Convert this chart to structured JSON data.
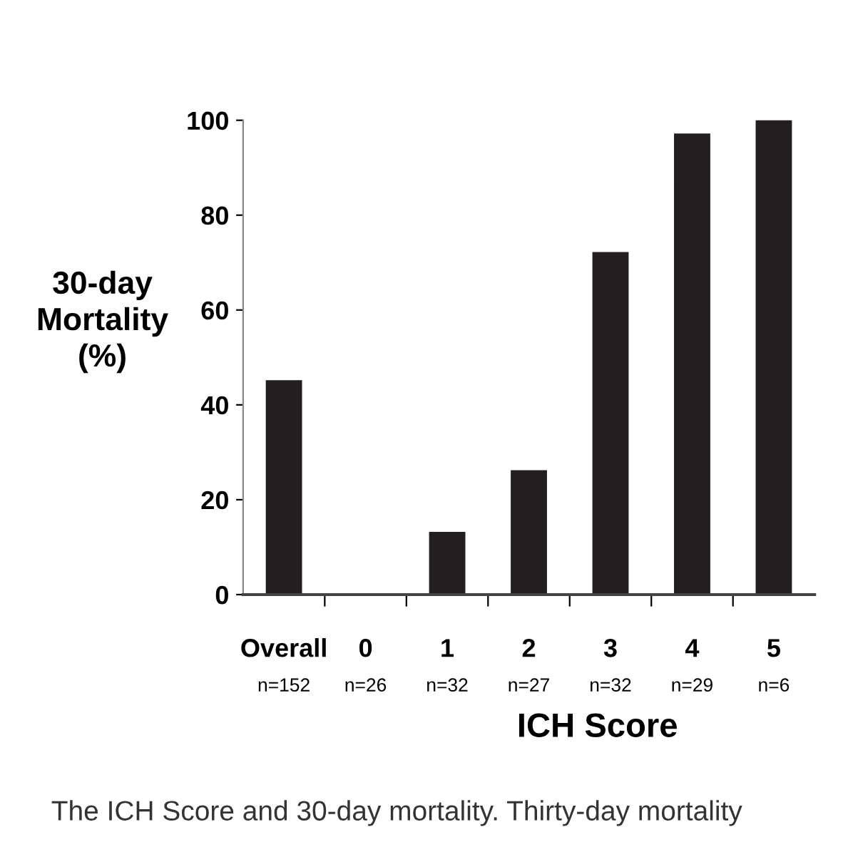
{
  "chart_data": {
    "type": "bar",
    "xlabel": "ICH Score",
    "ylabel": "30-day\nMortality\n(%)",
    "categories": [
      "Overall\nn=152",
      "0\nn=26",
      "1\nn=32",
      "2\nn=27",
      "3\nn=32",
      "4\nn=29",
      "5\nn=6"
    ],
    "values": [
      45,
      0,
      13,
      26,
      72,
      97,
      100
    ],
    "color": "#231f20",
    "ylim": [
      0,
      100
    ],
    "yticks": [
      0,
      20,
      40,
      60,
      80,
      100
    ],
    "grid": false,
    "legend": false,
    "annotations": [
      "The ICH Score and 30-day mortality. Thirty-day mortality"
    ]
  }
}
